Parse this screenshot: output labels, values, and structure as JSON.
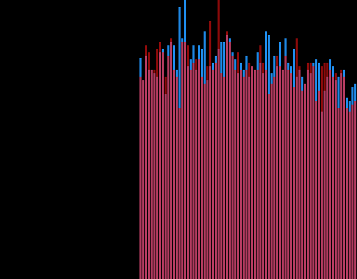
{
  "chart_data": {
    "type": "bar",
    "ylim": [
      0,
      400
    ],
    "overlap_color": "#b03a5e",
    "series": [
      {
        "color": "#1e88e5",
        "values": [
          317,
          285,
          320,
          300,
          300,
          295,
          290,
          325,
          330,
          265,
          335,
          340,
          335,
          300,
          390,
          345,
          400,
          305,
          315,
          335,
          300,
          335,
          330,
          355,
          285,
          305,
          310,
          320,
          330,
          340,
          340,
          350,
          345,
          325,
          315,
          295,
          310,
          300,
          320,
          290,
          305,
          300,
          325,
          310,
          295,
          355,
          350,
          295,
          320,
          305,
          340,
          300,
          345,
          310,
          305,
          330,
          290,
          300,
          290,
          280,
          300,
          295,
          310,
          315,
          310,
          240,
          270,
          290,
          315,
          305,
          285,
          290,
          295,
          300,
          260,
          255,
          275,
          280
        ]
      },
      {
        "color": "#8b0a0a",
        "values": [
          290,
          285,
          335,
          325,
          300,
          300,
          330,
          340,
          325,
          290,
          320,
          345,
          300,
          290,
          245,
          340,
          340,
          335,
          300,
          310,
          315,
          315,
          290,
          280,
          305,
          370,
          300,
          310,
          400,
          295,
          290,
          355,
          340,
          320,
          300,
          325,
          300,
          290,
          300,
          310,
          305,
          300,
          300,
          335,
          310,
          300,
          265,
          280,
          290,
          320,
          305,
          300,
          320,
          300,
          295,
          275,
          345,
          305,
          270,
          280,
          310,
          310,
          305,
          255,
          270,
          305,
          310,
          310,
          300,
          290,
          295,
          245,
          300,
          290,
          245,
          240,
          250,
          255
        ]
      }
    ]
  }
}
